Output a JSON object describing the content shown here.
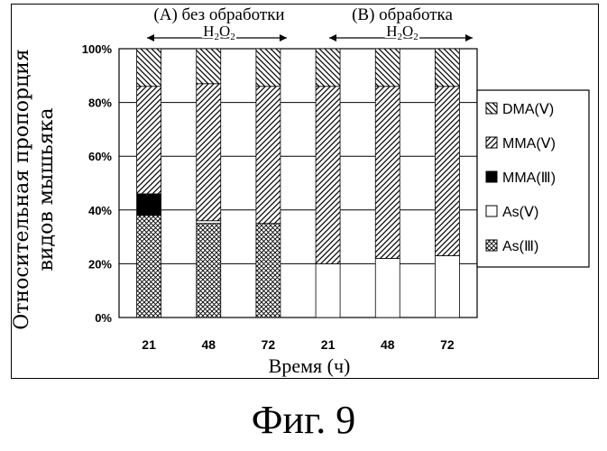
{
  "chart_data": {
    "type": "bar",
    "stacked": true,
    "ylabel_lines": [
      "Относительная пропорция",
      "видов мышьяка"
    ],
    "xlabel": "Время (ч)",
    "categories": [
      "21",
      "48",
      "72",
      "21",
      "48",
      "72"
    ],
    "ylim": [
      0,
      100
    ],
    "yticks": [
      "0%",
      "20%",
      "40%",
      "60%",
      "80%",
      "100%"
    ],
    "grid": true,
    "legend_position": "right",
    "groups": [
      {
        "label": "(A) без обработки",
        "sublabel": "H2O2"
      },
      {
        "label": "(B) обработка",
        "sublabel": "H2O2"
      }
    ],
    "series": [
      {
        "name": "As(Ⅲ)",
        "pattern": "crosshatch",
        "values": [
          38,
          35,
          35,
          0,
          0,
          0
        ]
      },
      {
        "name": "As(Ⅴ)",
        "pattern": "white",
        "values": [
          0,
          1,
          0,
          20,
          22,
          23
        ]
      },
      {
        "name": "MMA(Ⅲ)",
        "pattern": "solid",
        "values": [
          8,
          0,
          0,
          0,
          0,
          0
        ]
      },
      {
        "name": "MMA(Ⅴ)",
        "pattern": "diag-right",
        "values": [
          40,
          51,
          51,
          66,
          64,
          63
        ]
      },
      {
        "name": "DMA(Ⅴ)",
        "pattern": "diag-left",
        "values": [
          14,
          13,
          14,
          14,
          14,
          14
        ]
      }
    ]
  },
  "figure": {
    "caption": "Фиг. 9"
  }
}
